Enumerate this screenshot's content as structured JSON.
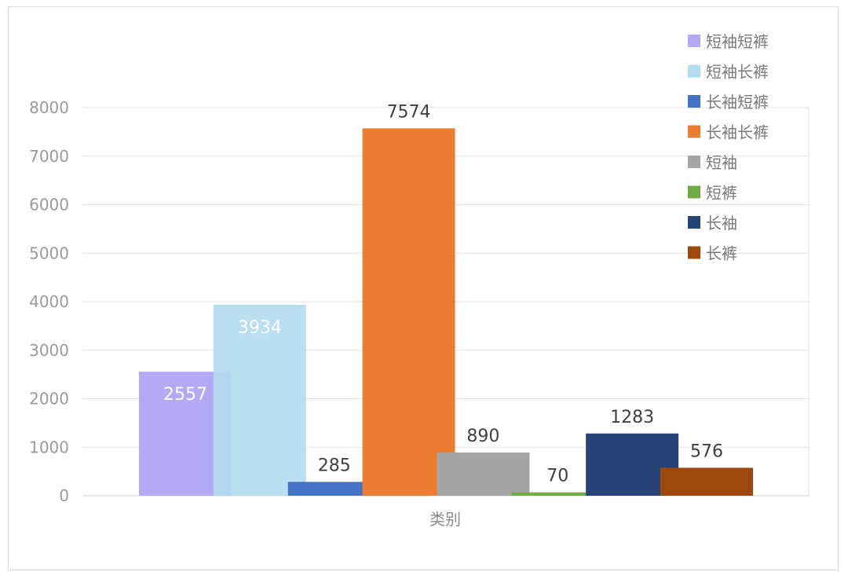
{
  "chart_data": {
    "type": "bar",
    "title": "",
    "xlabel": "类别",
    "ylabel": "",
    "ylim": [
      0,
      8000
    ],
    "yticks": [
      0,
      1000,
      2000,
      3000,
      4000,
      5000,
      6000,
      7000,
      8000
    ],
    "grid": true,
    "legend_position": "top-right",
    "series": [
      {
        "name": "短袖短裤",
        "value": 2557,
        "color": "#b4a9f5",
        "label_color": "#ffffff"
      },
      {
        "name": "短袖长裤",
        "value": 3934,
        "color": "#b3dcf0",
        "label_color": "#ffffff"
      },
      {
        "name": "长袖短裤",
        "value": 285,
        "color": "#4472c4",
        "label_color": "#404040"
      },
      {
        "name": "长袖长裤",
        "value": 7574,
        "color": "#ed7d31",
        "label_color": "#404040"
      },
      {
        "name": "短袖",
        "value": 890,
        "color": "#a5a5a5",
        "label_color": "#404040"
      },
      {
        "name": "短裤",
        "value": 70,
        "color": "#70ad47",
        "label_color": "#404040"
      },
      {
        "name": "长袖",
        "value": 1283,
        "color": "#264478",
        "label_color": "#404040"
      },
      {
        "name": "长裤",
        "value": 576,
        "color": "#9e480e",
        "label_color": "#404040"
      }
    ]
  }
}
